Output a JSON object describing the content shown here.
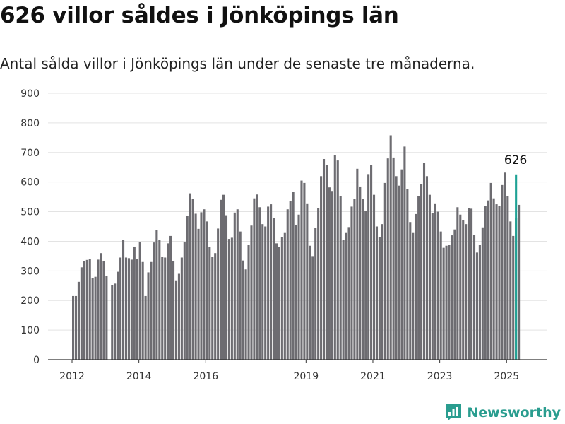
{
  "colors": {
    "bar": "#6d6c71",
    "highlight": "#1ea295",
    "grid": "#e3e3e3",
    "axis": "#333333",
    "brand": "#2a9d8f"
  },
  "title": "626 villor såldes i Jönköpings län",
  "subtitle": "Antal sålda villor i Jönköpings län under de senaste tre månaderna.",
  "brand": {
    "name": "Newsworthy",
    "icon": "newsworthy-logo-icon"
  },
  "chart_data": {
    "type": "bar",
    "title": "626 villor såldes i Jönköpings län",
    "subtitle": "Antal sålda villor i Jönköpings län under de senaste tre månaderna.",
    "xlabel": "",
    "ylabel": "",
    "ylim": [
      0,
      900
    ],
    "yticks": [
      "0",
      "100",
      "200",
      "300",
      "400",
      "500",
      "600",
      "700",
      "800",
      "900"
    ],
    "xticks": [
      {
        "label": "2012",
        "value": 2012
      },
      {
        "label": "2014",
        "value": 2014
      },
      {
        "label": "2016",
        "value": 2016
      },
      {
        "label": "2019",
        "value": 2019
      },
      {
        "label": "2021",
        "value": 2021
      },
      {
        "label": "2023",
        "value": 2023
      },
      {
        "label": "2025",
        "value": 2025
      }
    ],
    "grid": true,
    "legend": "none",
    "series": [
      {
        "start_year": 2012,
        "start_month": 1,
        "values": [
          215,
          215,
          263,
          312,
          334,
          337,
          340,
          275,
          280,
          338,
          360,
          333,
          282
        ],
        "note_months": "Jan 2012 - Jan 2013"
      },
      {
        "start_year": 2013,
        "start_month": 3,
        "values": [
          252,
          257,
          297,
          345,
          405,
          345,
          343,
          338,
          382,
          340,
          398,
          330
        ],
        "note_months": "Mar 2013 - Feb 2014"
      },
      {
        "start_year": 2014,
        "start_month": 3,
        "values": [
          215,
          295,
          330,
          396,
          437,
          405,
          347,
          345,
          393,
          418,
          333,
          268
        ],
        "note_months": "Mar 2014 - Feb 2015"
      },
      {
        "start_year": 2015,
        "start_month": 3,
        "values": [
          290,
          345,
          397,
          485,
          562,
          543,
          493,
          442,
          498,
          508,
          467,
          380
        ],
        "note_months": "Mar 2015 - Feb 2016"
      },
      {
        "start_year": 2016,
        "start_month": 3,
        "values": [
          348,
          360,
          443,
          540,
          557,
          488,
          408,
          412,
          497,
          508,
          433,
          335,
          305,
          387,
          453,
          545,
          558,
          515,
          458,
          450,
          517,
          525,
          478,
          393,
          380,
          415,
          428,
          508,
          537,
          567,
          456,
          490,
          605,
          597,
          528,
          385,
          350,
          445,
          512,
          620,
          678,
          657,
          582,
          570,
          690,
          673,
          553,
          405,
          428,
          448,
          517,
          543,
          645,
          585,
          543,
          503,
          627,
          657,
          557,
          450,
          415,
          458,
          597,
          680,
          758,
          683,
          620,
          588,
          643,
          720,
          577,
          465,
          428,
          492,
          553,
          593,
          665,
          620,
          557,
          495,
          528,
          500,
          433,
          378,
          385,
          388,
          420,
          440,
          515,
          490,
          472,
          458,
          512,
          510,
          422,
          362,
          387,
          447,
          518,
          538,
          597,
          545,
          525,
          520,
          590,
          632,
          553,
          467,
          418,
          478,
          523
        ],
        "note_months": "Mar 2016 - Mar 2025"
      }
    ],
    "highlight": {
      "year": 2025,
      "month": 4,
      "value": 626,
      "label": "626"
    }
  }
}
